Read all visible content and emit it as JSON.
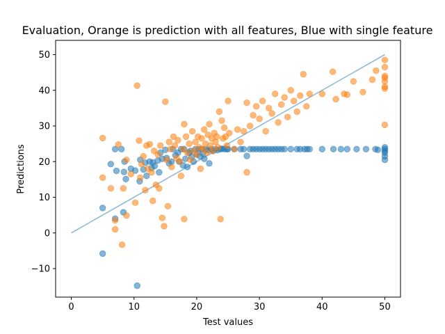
{
  "chart_data": {
    "type": "scatter",
    "title": "Evaluation, Orange is prediction with all features, Blue with single feature",
    "xlabel": "Test values",
    "ylabel": "Predictions",
    "xlim": [
      -2.5,
      52.5
    ],
    "ylim": [
      -18,
      54
    ],
    "x_ticks": [
      0,
      10,
      20,
      30,
      40,
      50
    ],
    "y_ticks": [
      -10,
      0,
      10,
      20,
      30,
      40,
      50
    ],
    "grid": false,
    "legend": "none",
    "reference_line": {
      "x": [
        0,
        50
      ],
      "y": [
        0,
        50
      ],
      "color": "#1f77b4",
      "alpha": 0.5
    },
    "series": [
      {
        "color": "#1f77b4",
        "alpha": 0.55,
        "points": [
          [
            5.0,
            -5.8
          ],
          [
            5.0,
            7.0
          ],
          [
            6.3,
            19.3
          ],
          [
            7.0,
            23.5
          ],
          [
            7.0,
            4.0
          ],
          [
            7.2,
            17.4
          ],
          [
            8.0,
            23.5
          ],
          [
            8.3,
            5.8
          ],
          [
            8.4,
            17.1
          ],
          [
            8.5,
            20.0
          ],
          [
            8.7,
            15.1
          ],
          [
            9.5,
            18.0
          ],
          [
            10.2,
            17.5
          ],
          [
            10.5,
            -14.8
          ],
          [
            10.9,
            14.5
          ],
          [
            11.0,
            20.5
          ],
          [
            11.5,
            17.8
          ],
          [
            11.8,
            19.7
          ],
          [
            12.0,
            16.0
          ],
          [
            12.5,
            20.0
          ],
          [
            12.8,
            18.2
          ],
          [
            13.0,
            19.8
          ],
          [
            13.3,
            18.8
          ],
          [
            13.8,
            20.3
          ],
          [
            14.0,
            17.0
          ],
          [
            14.2,
            22.5
          ],
          [
            14.5,
            20.8
          ],
          [
            15.0,
            23.3
          ],
          [
            15.2,
            21.0
          ],
          [
            15.6,
            19.5
          ],
          [
            16.0,
            20.0
          ],
          [
            16.2,
            23.5
          ],
          [
            16.6,
            21.8
          ],
          [
            17.0,
            22.5
          ],
          [
            17.2,
            20.0
          ],
          [
            17.5,
            23.5
          ],
          [
            17.8,
            19.0
          ],
          [
            18.0,
            23.5
          ],
          [
            18.2,
            20.8
          ],
          [
            18.5,
            18.5
          ],
          [
            18.8,
            22.5
          ],
          [
            19.0,
            23.0
          ],
          [
            19.2,
            21.3
          ],
          [
            19.5,
            20.0
          ],
          [
            19.8,
            23.5
          ],
          [
            20.0,
            22.0
          ],
          [
            20.3,
            23.4
          ],
          [
            20.5,
            21.5
          ],
          [
            20.8,
            23.5
          ],
          [
            21.0,
            22.3
          ],
          [
            21.2,
            20.8
          ],
          [
            21.5,
            23.5
          ],
          [
            21.8,
            23.2
          ],
          [
            22.0,
            19.5
          ],
          [
            22.3,
            23.5
          ],
          [
            22.6,
            23.0
          ],
          [
            23.0,
            23.5
          ],
          [
            23.3,
            23.2
          ],
          [
            23.8,
            23.5
          ],
          [
            24.0,
            23.6
          ],
          [
            24.4,
            23.5
          ],
          [
            24.8,
            23.5
          ],
          [
            25.0,
            23.5
          ],
          [
            26.0,
            23.5
          ],
          [
            27.0,
            23.5
          ],
          [
            27.5,
            23.5
          ],
          [
            28.0,
            21.6
          ],
          [
            28.5,
            23.5
          ],
          [
            29.0,
            23.5
          ],
          [
            29.5,
            23.5
          ],
          [
            30.0,
            23.5
          ],
          [
            30.5,
            23.5
          ],
          [
            31.0,
            23.5
          ],
          [
            31.5,
            23.5
          ],
          [
            32.0,
            23.5
          ],
          [
            32.5,
            23.5
          ],
          [
            33.0,
            23.5
          ],
          [
            33.5,
            23.5
          ],
          [
            34.0,
            23.5
          ],
          [
            35.0,
            23.5
          ],
          [
            36.0,
            23.5
          ],
          [
            36.5,
            23.5
          ],
          [
            37.2,
            23.5
          ],
          [
            37.6,
            23.5
          ],
          [
            38.0,
            23.5
          ],
          [
            40.0,
            23.5
          ],
          [
            41.8,
            23.5
          ],
          [
            43.0,
            23.5
          ],
          [
            44.0,
            23.5
          ],
          [
            45.5,
            23.5
          ],
          [
            47.0,
            23.5
          ],
          [
            48.5,
            23.5
          ],
          [
            48.9,
            23.3
          ],
          [
            50.0,
            23.5
          ],
          [
            50.0,
            22.5
          ],
          [
            50.0,
            24.0
          ],
          [
            50.0,
            21.5
          ],
          [
            50.0,
            23.0
          ],
          [
            50.0,
            20.5
          ]
        ]
      },
      {
        "color": "#ff7f0e",
        "alpha": 0.55,
        "points": [
          [
            5.0,
            26.6
          ],
          [
            5.0,
            15.5
          ],
          [
            6.3,
            12.5
          ],
          [
            7.0,
            1.0
          ],
          [
            7.0,
            3.5
          ],
          [
            7.5,
            24.8
          ],
          [
            8.1,
            -3.3
          ],
          [
            8.3,
            12.5
          ],
          [
            8.8,
            4.9
          ],
          [
            8.8,
            20.5
          ],
          [
            9.5,
            16.5
          ],
          [
            10.2,
            8.5
          ],
          [
            10.5,
            41.3
          ],
          [
            10.8,
            25.9
          ],
          [
            11.0,
            15.5
          ],
          [
            11.2,
            19.3
          ],
          [
            11.5,
            21.5
          ],
          [
            11.8,
            12.0
          ],
          [
            12.0,
            24.5
          ],
          [
            12.2,
            18.0
          ],
          [
            12.5,
            24.9
          ],
          [
            12.8,
            17.0
          ],
          [
            13.0,
            9.0
          ],
          [
            13.2,
            23.0
          ],
          [
            13.5,
            13.5
          ],
          [
            13.8,
            22.0
          ],
          [
            14.0,
            12.5
          ],
          [
            14.2,
            24.5
          ],
          [
            14.5,
            4.2
          ],
          [
            14.8,
            1.9
          ],
          [
            15.0,
            36.8
          ],
          [
            15.2,
            20.5
          ],
          [
            15.4,
            7.5
          ],
          [
            15.6,
            25.5
          ],
          [
            15.8,
            23.5
          ],
          [
            16.0,
            18.5
          ],
          [
            16.3,
            27.0
          ],
          [
            16.5,
            24.5
          ],
          [
            16.8,
            21.0
          ],
          [
            17.0,
            26.0
          ],
          [
            17.3,
            20.0
          ],
          [
            17.5,
            16.0
          ],
          [
            17.8,
            23.5
          ],
          [
            18.0,
            3.9
          ],
          [
            18.0,
            30.5
          ],
          [
            18.3,
            27.0
          ],
          [
            18.5,
            22.5
          ],
          [
            18.8,
            25.0
          ],
          [
            19.0,
            20.5
          ],
          [
            19.3,
            28.5
          ],
          [
            19.5,
            23.0
          ],
          [
            19.8,
            25.5
          ],
          [
            20.0,
            22.0
          ],
          [
            20.2,
            27.0
          ],
          [
            20.4,
            24.0
          ],
          [
            20.6,
            18.0
          ],
          [
            20.8,
            26.5
          ],
          [
            21.0,
            23.5
          ],
          [
            21.2,
            29.0
          ],
          [
            21.4,
            25.0
          ],
          [
            21.6,
            22.5
          ],
          [
            21.8,
            27.5
          ],
          [
            22.0,
            30.5
          ],
          [
            22.2,
            24.5
          ],
          [
            22.4,
            26.5
          ],
          [
            22.6,
            23.0
          ],
          [
            22.8,
            28.0
          ],
          [
            23.0,
            25.5
          ],
          [
            23.2,
            27.0
          ],
          [
            23.4,
            24.0
          ],
          [
            23.6,
            34.0
          ],
          [
            23.8,
            3.9
          ],
          [
            24.0,
            31.5
          ],
          [
            24.2,
            26.5
          ],
          [
            24.4,
            29.5
          ],
          [
            24.6,
            27.0
          ],
          [
            24.8,
            24.5
          ],
          [
            25.0,
            37.0
          ],
          [
            25.2,
            28.0
          ],
          [
            26.0,
            23.5
          ],
          [
            26.5,
            29.0
          ],
          [
            27.0,
            25.5
          ],
          [
            27.5,
            28.5
          ],
          [
            28.0,
            36.5
          ],
          [
            28.0,
            17.0
          ],
          [
            28.5,
            30.0
          ],
          [
            29.0,
            33.0
          ],
          [
            29.5,
            35.5
          ],
          [
            30.0,
            32.0
          ],
          [
            30.5,
            37.0
          ],
          [
            31.0,
            28.5
          ],
          [
            31.5,
            35.0
          ],
          [
            32.0,
            33.5
          ],
          [
            32.5,
            39.0
          ],
          [
            33.0,
            31.0
          ],
          [
            33.5,
            36.0
          ],
          [
            34.0,
            38.0
          ],
          [
            34.5,
            32.5
          ],
          [
            35.0,
            40.0
          ],
          [
            35.5,
            37.0
          ],
          [
            36.0,
            34.0
          ],
          [
            36.5,
            38.5
          ],
          [
            37.0,
            44.5
          ],
          [
            37.5,
            35.5
          ],
          [
            38.0,
            39.0
          ],
          [
            40.0,
            39.0
          ],
          [
            41.7,
            45.2
          ],
          [
            42.2,
            37.5
          ],
          [
            43.5,
            39.0
          ],
          [
            44.0,
            38.8
          ],
          [
            45.0,
            42.5
          ],
          [
            46.5,
            39.5
          ],
          [
            48.0,
            43.0
          ],
          [
            48.6,
            45.5
          ],
          [
            50.0,
            48.5
          ],
          [
            50.0,
            46.5
          ],
          [
            50.0,
            44.0
          ],
          [
            50.0,
            42.5
          ],
          [
            50.0,
            41.0
          ],
          [
            50.0,
            30.3
          ],
          [
            50.0,
            43.5
          ],
          [
            50.0,
            40.5
          ]
        ]
      }
    ]
  }
}
